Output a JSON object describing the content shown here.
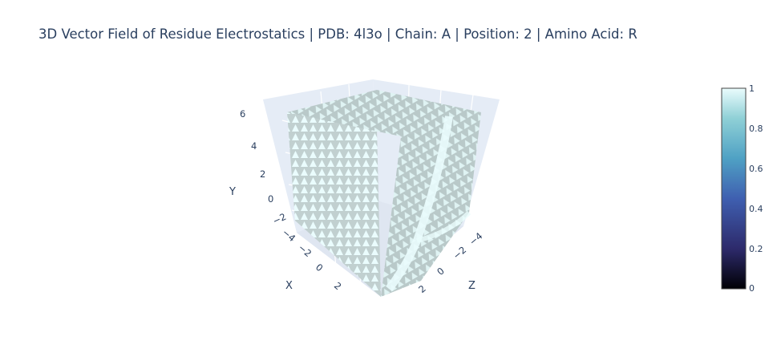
{
  "title": "3D Vector Field of Residue Electrostatics | PDB: 4l3o | Chain: A | Position: 2 | Amino Acid: R",
  "chart_data": {
    "type": "cone",
    "title": "3D Vector Field of Residue Electrostatics | PDB: 4l3o | Chain: A | Position: 2 | Amino Acid: R",
    "axes": {
      "x": {
        "label": "X",
        "ticks": [
          "−4",
          "−2",
          "0",
          "2"
        ]
      },
      "y": {
        "label": "Y",
        "ticks": [
          "−2",
          "0",
          "2",
          "4",
          "6"
        ]
      },
      "z": {
        "label": "Z",
        "ticks": [
          "−4",
          "−2",
          "0",
          "2"
        ]
      }
    },
    "colorbar": {
      "range": [
        0,
        1
      ],
      "ticks": [
        "0",
        "0.2",
        "0.4",
        "0.6",
        "0.8",
        "1"
      ],
      "colorscale": [
        "#000004",
        "#2d2a6b",
        "#3f5fb0",
        "#4fa1c4",
        "#8fd0d6",
        "#eafcfd"
      ]
    },
    "colors": {
      "background": "#e5ecf6",
      "grid": "#ffffff",
      "cones_light": "#eafcfd",
      "cones_shade": "#b9c9c9"
    }
  }
}
